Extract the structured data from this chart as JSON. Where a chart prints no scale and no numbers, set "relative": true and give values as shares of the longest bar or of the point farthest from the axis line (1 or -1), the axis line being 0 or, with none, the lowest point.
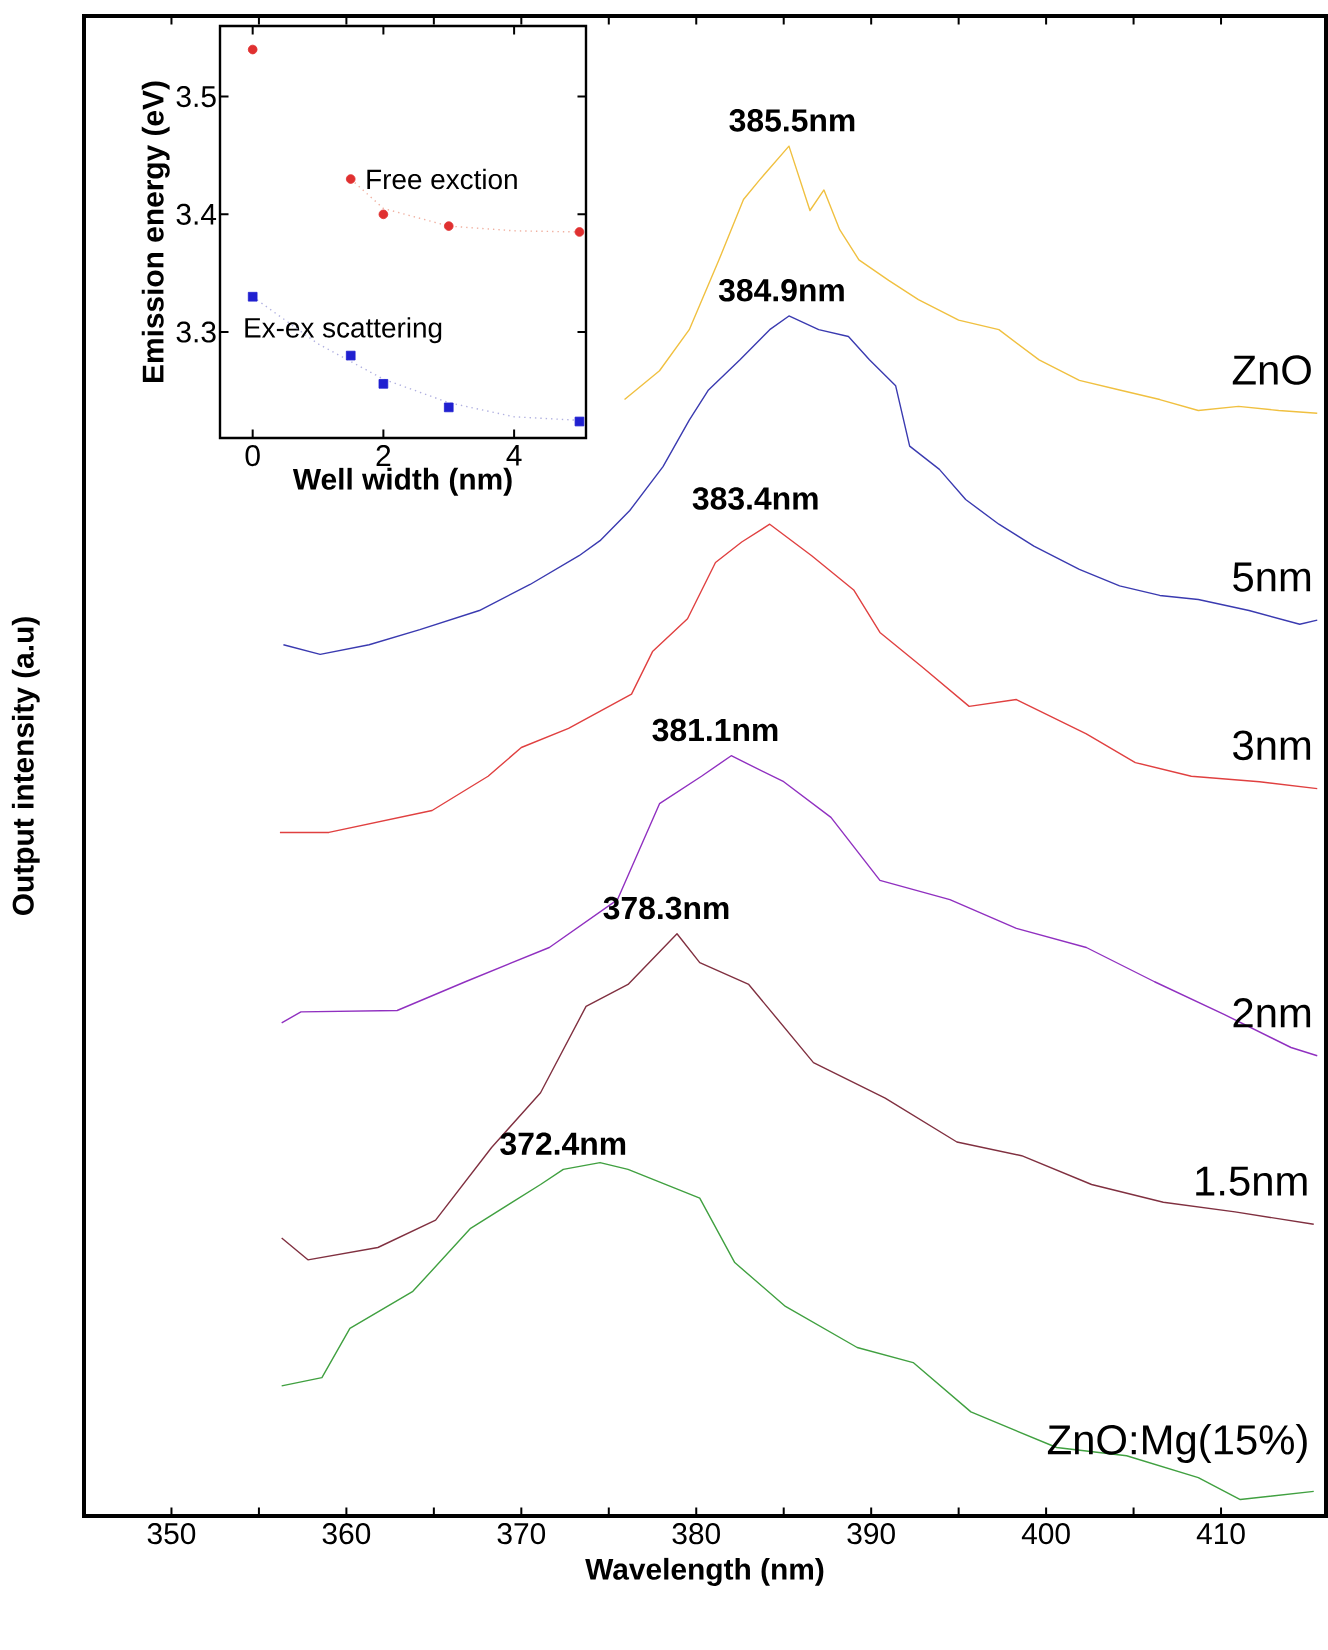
{
  "chart_data": [
    {
      "type": "line",
      "relative": true,
      "xlabel": "Wavelength (nm)",
      "ylabel": "Output intensity (a.u)",
      "xlim": [
        345,
        416
      ],
      "xticks": [
        350,
        {
          "value": 355,
          "label": null
        },
        360,
        {
          "value": 365,
          "label": null
        },
        370,
        {
          "value": 375,
          "label": null
        },
        380,
        {
          "value": 385,
          "label": null
        },
        390,
        {
          "value": 395,
          "label": null
        },
        400,
        {
          "value": 405,
          "label": null
        },
        410
      ],
      "series": [
        {
          "name": "ZnO",
          "color": "#f0c040",
          "x": [
            375.9,
            377.9,
            379.6,
            381.3,
            382.7,
            383.6,
            385.3,
            386.5,
            387.3,
            388.2,
            389.3,
            391.0,
            392.7,
            395.0,
            397.3,
            399.6,
            401.9,
            404.2,
            406.5,
            408.7,
            411.0,
            413.3,
            415.5
          ],
          "values": [
            0.815,
            0.836,
            0.866,
            0.917,
            0.961,
            0.975,
            1.0,
            0.953,
            0.968,
            0.939,
            0.917,
            0.902,
            0.888,
            0.873,
            0.866,
            0.844,
            0.829,
            0.822,
            0.815,
            0.807,
            0.81,
            0.807,
            0.805
          ]
        },
        {
          "name": "5nm",
          "color": "#3a3ab0",
          "x": [
            356.4,
            358.5,
            361.3,
            364.2,
            367.6,
            370.5,
            373.3,
            374.5,
            376.2,
            378.1,
            379.6,
            380.7,
            382.5,
            384.2,
            385.3,
            387.0,
            388.7,
            389.9,
            391.4,
            392.2,
            393.9,
            395.4,
            397.3,
            399.3,
            401.9,
            404.2,
            406.5,
            408.7,
            411.6,
            414.5,
            415.5
          ],
          "values": [
            0.636,
            0.629,
            0.636,
            0.647,
            0.661,
            0.68,
            0.701,
            0.712,
            0.734,
            0.766,
            0.8,
            0.822,
            0.844,
            0.866,
            0.876,
            0.866,
            0.861,
            0.844,
            0.825,
            0.781,
            0.764,
            0.742,
            0.724,
            0.708,
            0.691,
            0.679,
            0.672,
            0.669,
            0.661,
            0.651,
            0.654
          ]
        },
        {
          "name": "3nm",
          "color": "#e04040",
          "x": [
            356.2,
            359.0,
            364.9,
            368.1,
            370.0,
            372.7,
            376.3,
            377.5,
            379.5,
            381.1,
            382.6,
            384.2,
            386.6,
            389.0,
            390.5,
            392.9,
            395.6,
            398.3,
            402.3,
            405.1,
            408.3,
            412.2,
            415.5
          ],
          "values": [
            0.499,
            0.499,
            0.515,
            0.54,
            0.561,
            0.575,
            0.6,
            0.631,
            0.655,
            0.696,
            0.711,
            0.724,
            0.701,
            0.676,
            0.645,
            0.62,
            0.591,
            0.596,
            0.571,
            0.55,
            0.54,
            0.536,
            0.531
          ]
        },
        {
          "name": "2nm",
          "color": "#9030c0",
          "x": [
            356.3,
            357.4,
            362.9,
            366.8,
            371.6,
            375.5,
            377.9,
            380.3,
            382.0,
            385.0,
            387.7,
            390.5,
            394.5,
            398.3,
            402.3,
            406.2,
            410.2,
            414.0,
            415.5
          ],
          "values": [
            0.36,
            0.368,
            0.369,
            0.39,
            0.415,
            0.45,
            0.52,
            0.54,
            0.555,
            0.536,
            0.51,
            0.464,
            0.45,
            0.429,
            0.415,
            0.39,
            0.366,
            0.342,
            0.336
          ]
        },
        {
          "name": "1.5nm",
          "color": "#803040",
          "x": [
            356.3,
            357.8,
            361.8,
            365.1,
            368.3,
            371.1,
            373.7,
            376.1,
            378.9,
            380.2,
            383.0,
            386.7,
            390.8,
            394.9,
            398.6,
            402.6,
            406.7,
            410.8,
            415.3
          ],
          "values": [
            0.203,
            0.187,
            0.196,
            0.216,
            0.269,
            0.309,
            0.372,
            0.388,
            0.425,
            0.404,
            0.388,
            0.331,
            0.305,
            0.273,
            0.263,
            0.242,
            0.229,
            0.222,
            0.213
          ]
        },
        {
          "name": "ZnO:Mg(15%)",
          "color": "#40a040",
          "x": [
            356.3,
            358.6,
            360.2,
            363.8,
            367.1,
            371.1,
            372.4,
            374.5,
            376.1,
            380.2,
            382.2,
            385.1,
            389.2,
            392.4,
            395.7,
            400.6,
            404.6,
            408.7,
            411.1,
            415.3
          ],
          "values": [
            0.095,
            0.101,
            0.137,
            0.164,
            0.21,
            0.242,
            0.253,
            0.258,
            0.253,
            0.232,
            0.185,
            0.153,
            0.123,
            0.112,
            0.076,
            0.05,
            0.044,
            0.028,
            0.012,
            0.018
          ]
        }
      ],
      "annotations": [
        {
          "text": "385.5nm",
          "x": 385.5,
          "y": 1.0
        },
        {
          "text": "384.9nm",
          "x": 384.9,
          "y": 0.876
        },
        {
          "text": "383.4nm",
          "x": 383.4,
          "y": 0.724
        },
        {
          "text": "381.1nm",
          "x": 381.1,
          "y": 0.555
        },
        {
          "text": "378.3nm",
          "x": 378.3,
          "y": 0.425
        },
        {
          "text": "372.4nm",
          "x": 372.4,
          "y": 0.253
        }
      ]
    },
    {
      "type": "scatter",
      "xlabel": "Well width (nm)",
      "ylabel": "Emission energy (eV)",
      "xlim": [
        -0.5,
        5.1
      ],
      "ylim": [
        3.21,
        3.56
      ],
      "xticks": [
        0,
        2,
        4
      ],
      "yticks": [
        3.3,
        3.4,
        3.5
      ],
      "series": [
        {
          "name": "Free exction",
          "color": "#e03030",
          "marker": "circle",
          "x": [
            0,
            1.5,
            2,
            3,
            5
          ],
          "values": [
            3.54,
            3.43,
            3.4,
            3.39,
            3.385
          ]
        },
        {
          "name": "Ex-ex scattering",
          "color": "#2020d0",
          "marker": "square",
          "x": [
            0,
            1.5,
            2,
            3,
            5
          ],
          "values": [
            3.33,
            3.28,
            3.256,
            3.236,
            3.224
          ]
        },
        {
          "type": "line",
          "line_style": "dotted",
          "color": "#f0b0a0",
          "x": [
            1.5,
            2,
            3,
            4,
            5
          ],
          "values": [
            3.43,
            3.405,
            3.39,
            3.386,
            3.385
          ]
        },
        {
          "type": "line",
          "line_style": "dotted",
          "color": "#b0b0e0",
          "x": [
            0,
            1,
            2,
            3,
            4,
            5
          ],
          "values": [
            3.33,
            3.29,
            3.26,
            3.24,
            3.228,
            3.225
          ]
        }
      ]
    }
  ]
}
